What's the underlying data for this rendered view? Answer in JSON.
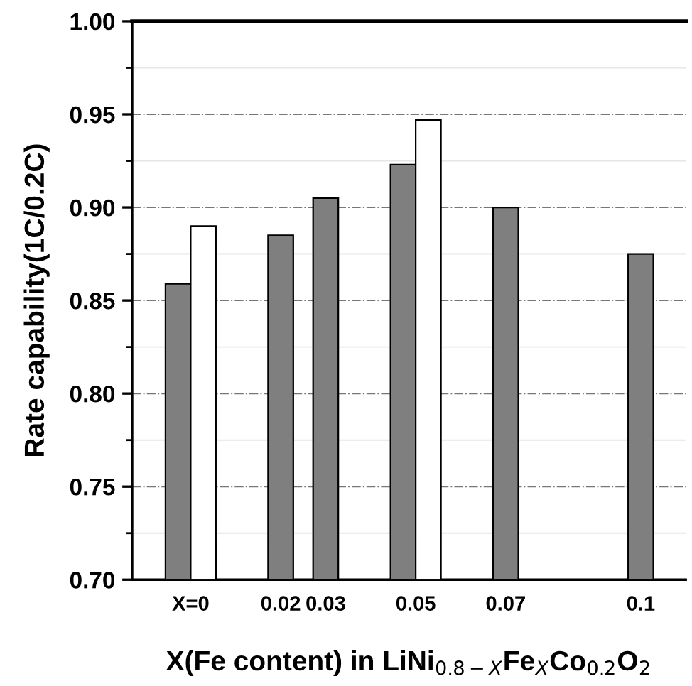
{
  "chart_data": {
    "type": "bar",
    "xlabel": "X(Fe content) in LiNi$_{0.8−X}$Fe$_{X}$Co$_{0.2}$O$_{2}$",
    "ylabel": "Rate capability(1C/0.2C)",
    "x": [
      0,
      0.02,
      0.03,
      0.05,
      0.07,
      0.1
    ],
    "series": [
      {
        "color": "#7f7f7f",
        "values": [
          0.859,
          0.885,
          0.905,
          0.923,
          0.9,
          0.875
        ]
      },
      {
        "color": "#ffffff",
        "values": [
          0.89,
          null,
          null,
          0.947,
          null,
          null
        ]
      }
    ],
    "xlim": [
      -0.013,
      0.11
    ],
    "xticks": [
      {
        "value": 0,
        "label": "X=0"
      },
      {
        "value": 0.02,
        "label": "0.02"
      },
      {
        "value": 0.03,
        "label": "0.03"
      },
      {
        "value": 0.05,
        "label": "0.05"
      },
      {
        "value": 0.07,
        "label": "0.07"
      },
      {
        "value": 0.1,
        "label": "0.1"
      }
    ],
    "ylim": [
      0.7,
      1.0
    ],
    "yticks": [
      {
        "value": 0.7,
        "label": "0.70"
      },
      {
        "value": 0.75,
        "label": "0.75"
      },
      {
        "value": 0.8,
        "label": "0.80"
      },
      {
        "value": 0.85,
        "label": "0.85"
      },
      {
        "value": 0.9,
        "label": "0.90"
      },
      {
        "value": 0.95,
        "label": "0.95"
      },
      {
        "value": 1.0,
        "label": "1.00"
      }
    ],
    "grid": "y"
  }
}
